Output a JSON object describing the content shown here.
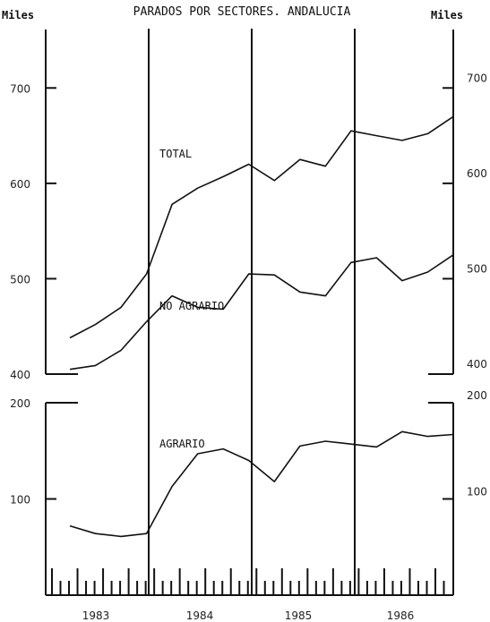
{
  "title": "PARADOS POR SECTORES. ANDALUCIA",
  "unit_left": "Miles",
  "unit_right": "Miles",
  "chart_data": {
    "type": "line",
    "title": "PARADOS POR SECTORES. ANDALUCIA",
    "x": [
      "1983 Q1",
      "1983 Q2",
      "1983 Q3",
      "1983 Q4",
      "1984 Q1",
      "1984 Q2",
      "1984 Q3",
      "1984 Q4",
      "1985 Q1",
      "1985 Q2",
      "1985 Q3",
      "1985 Q4",
      "1986 Q1",
      "1986 Q2",
      "1986 Q3",
      "1986 Q4"
    ],
    "year_labels": [
      "1983",
      "1984",
      "1985",
      "1986"
    ],
    "upper_axis": {
      "ylim": [
        400,
        750
      ],
      "ticks": [
        400,
        500,
        600,
        700
      ]
    },
    "lower_axis": {
      "ylim": [
        0,
        200
      ],
      "ticks": [
        100,
        200
      ]
    },
    "series": [
      {
        "name": "TOTAL",
        "axis": "upper",
        "values": [
          438,
          452,
          470,
          505,
          578,
          595,
          607,
          620,
          603,
          625,
          618,
          655,
          650,
          645,
          652,
          670
        ]
      },
      {
        "name": "NO AGRARIO",
        "axis": "upper",
        "values": [
          405,
          409,
          425,
          455,
          482,
          470,
          468,
          505,
          504,
          486,
          482,
          517,
          522,
          498,
          507,
          525
        ]
      },
      {
        "name": "AGRARIO",
        "axis": "lower",
        "values": [
          72,
          64,
          61,
          64,
          113,
          147,
          152,
          140,
          118,
          155,
          160,
          157,
          154,
          170,
          165,
          167
        ]
      }
    ]
  }
}
